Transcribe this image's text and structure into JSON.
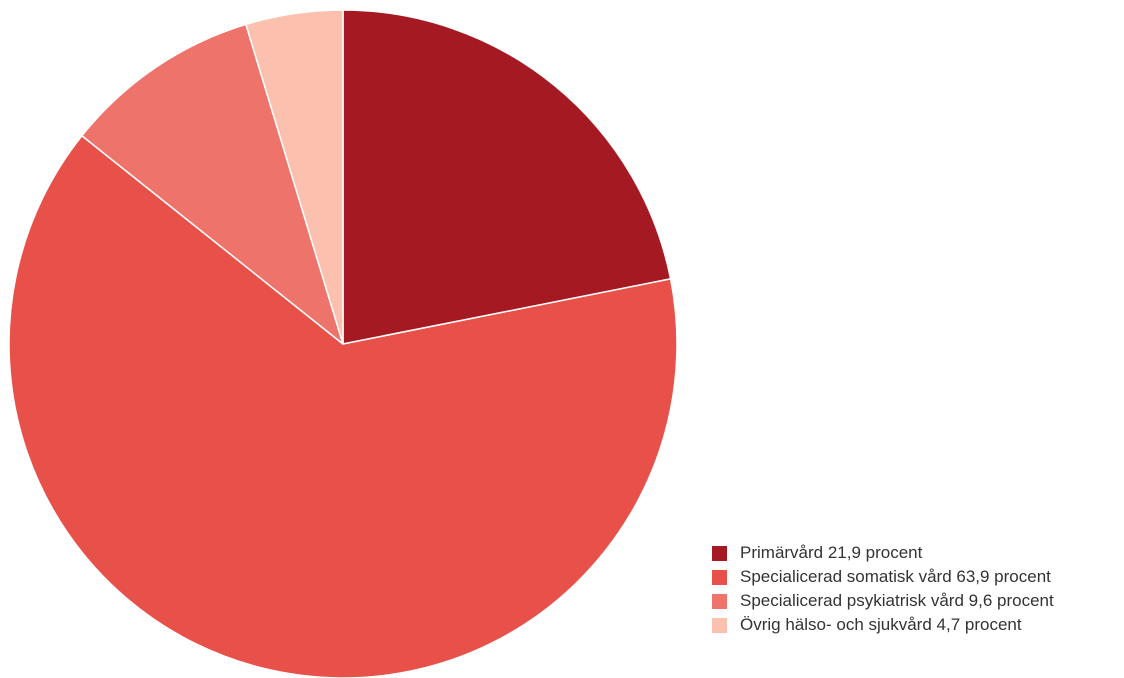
{
  "chart_data": {
    "type": "pie",
    "title": "",
    "start_angle_deg": 0,
    "direction": "clockwise",
    "legend_position": "bottom-right",
    "slices": [
      {
        "label": "Primärvård 21,9 procent",
        "category": "Primärvård",
        "value": 21.9,
        "color": "#a51a22"
      },
      {
        "label": "Specialicerad somatisk vård 63,9 procent",
        "category": "Specialicerad somatisk vård",
        "value": 63.9,
        "color": "#e8514a"
      },
      {
        "label": "Specialicerad psykiatrisk vård 9,6 procent",
        "category": "Specialicerad psykiatrisk vård",
        "value": 9.6,
        "color": "#ee736b"
      },
      {
        "label": "Övrig hälso- och sjukvård 4,7 procent",
        "category": "Övrig hälso- och sjukvård",
        "value": 4.7,
        "color": "#fbc1ae"
      }
    ]
  }
}
